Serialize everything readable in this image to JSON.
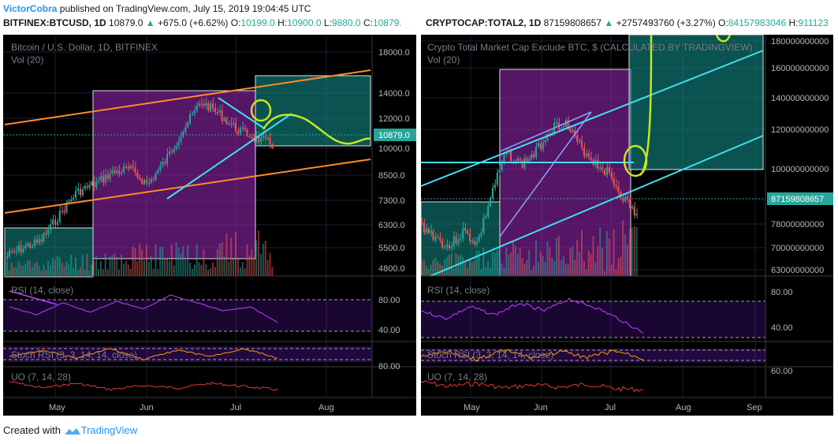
{
  "header": {
    "author": "VictorCobra",
    "published": " published on TradingView.com, July 15, 2019 19:04:45 UTC"
  },
  "left_chart": {
    "symbol": "BITFINEX:BTCUSD, 1D",
    "price": "10879.0",
    "change": "+675.0 (+6.62%)",
    "o_label": "O:",
    "o": "10199.0",
    "h_label": "H:",
    "h": "10900.0",
    "l_label": "L:",
    "l": "9880.0",
    "c_label": "C:",
    "c": "10879.",
    "title": "Bitcoin / U.S. Dollar, 1D, BITFINEX",
    "vol": "Vol (20)",
    "price_ticks": [
      "18000.0",
      "14000.0",
      "12000.0",
      "10000.0",
      "8500.0",
      "7300.0",
      "6300.0",
      "5500.0",
      "4800.0"
    ],
    "current_price_tag": "10879.0",
    "rsi_label": "RSI (14, close)",
    "rsi_ticks": [
      "80.00",
      "40.00"
    ],
    "stoch_label": "Stoch RSI (3, 3, 14, 14, close)",
    "stoch_ticks": [
      "80.00"
    ],
    "uo_label": "UO (7, 14, 28)",
    "months": [
      "May",
      "Jun",
      "Jul",
      "Aug"
    ]
  },
  "right_chart": {
    "symbol": "CRYPTOCAP:TOTAL2, 1D",
    "price": "87159808657",
    "change": "+2757493760 (+3.27%)",
    "o_label": "O:",
    "o": "84157983046",
    "h_label": "H:",
    "h": "911123",
    "title": "Crypto Total Market Cap Exclude BTC, $ (CALCULATED BY TRADINGVIEW)",
    "vol": "Vol (20)",
    "price_ticks": [
      "180000000000",
      "160000000000",
      "140000000000",
      "120000000000",
      "100000000000",
      "78000000000",
      "70000000000",
      "63000000000"
    ],
    "current_price_tag": "87159808657",
    "rsi_label": "RSI (14, close)",
    "rsi_ticks": [
      "80.00",
      "40.00"
    ],
    "stoch_label": "Stoch RSI (3, 3, 14, 14, close)",
    "uo_label": "UO (7, 14, 28)",
    "uo_ticks": [
      "60.00"
    ],
    "months": [
      "May",
      "Jun",
      "Jul",
      "Aug",
      "Sep"
    ]
  },
  "footer": {
    "created_with": "Created with",
    "brand": "TradingView"
  },
  "colors": {
    "background": "#000000",
    "up": "#26a69a",
    "down": "#ef5350",
    "trend_orange": "#ff8c2a",
    "trend_cyan": "#40e0f0",
    "highlight_yellow": "#c6e61e",
    "box_purple": "#7b1fa2",
    "box_teal": "#138a86",
    "rsi_line": "#c040ff",
    "uo_line": "#e53935"
  }
}
